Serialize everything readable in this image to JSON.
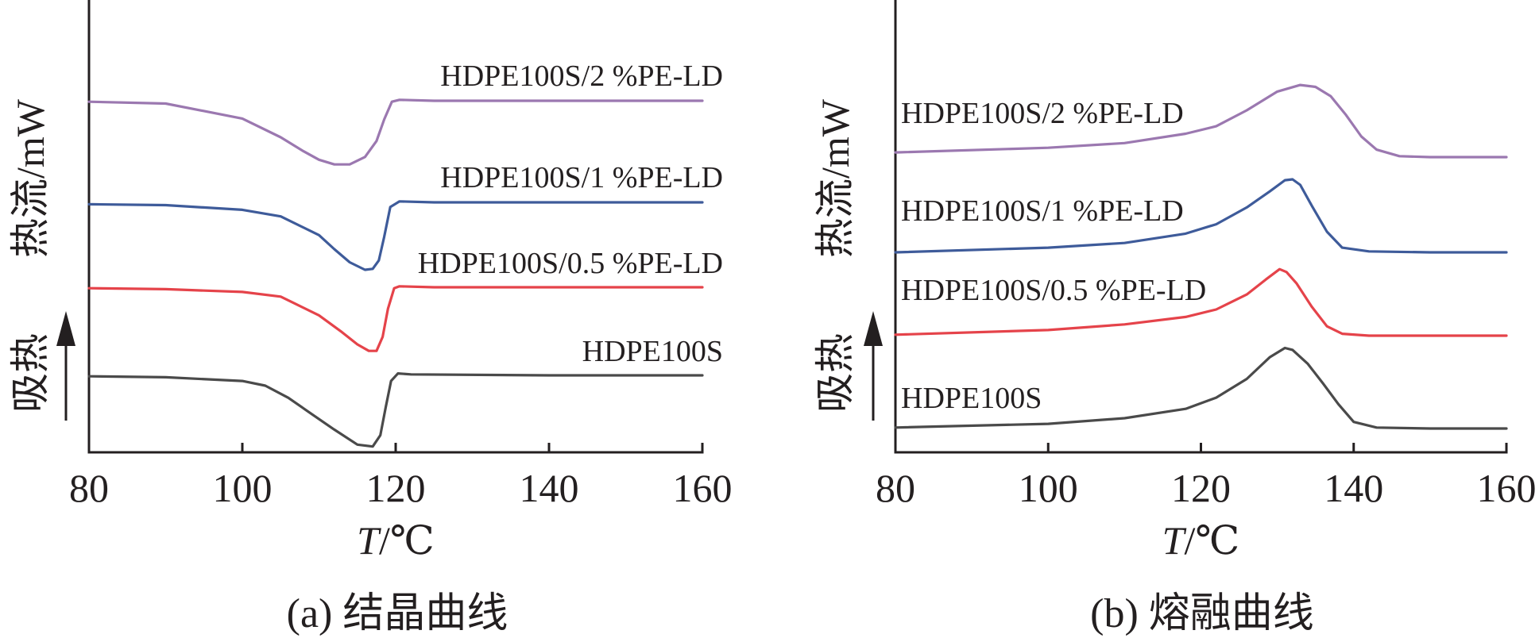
{
  "chart_data": [
    {
      "type": "line",
      "caption": "(a) 结晶曲线",
      "xlabel_var": "T",
      "xlabel_unit": "/℃",
      "ylabel": "热流/mW",
      "endotherm_label": "吸热",
      "xlim": [
        80,
        160
      ],
      "xticks": [
        80,
        100,
        120,
        140,
        160
      ],
      "yticks_shown": false,
      "grid": false,
      "legend": "inline labels above curves",
      "series": [
        {
          "name": "HDPE100S/2 %PE-LD",
          "color": "#9b78b0",
          "x": [
            80,
            90,
            100,
            105,
            108,
            110,
            112,
            114,
            116,
            117.5,
            118.5,
            119.5,
            120.5,
            125,
            140,
            160
          ],
          "y": [
            4.14,
            4.12,
            3.96,
            3.76,
            3.61,
            3.52,
            3.47,
            3.47,
            3.55,
            3.72,
            3.95,
            4.14,
            4.16,
            4.15,
            4.15,
            4.15
          ]
        },
        {
          "name": "HDPE100S/1 %PE-LD",
          "color": "#3e5b9a",
          "x": [
            80,
            90,
            100,
            105,
            110,
            112,
            114,
            116,
            117,
            117.8,
            118.5,
            119.3,
            120.5,
            125,
            140,
            160
          ],
          "y": [
            2.95,
            2.94,
            2.89,
            2.82,
            2.62,
            2.47,
            2.33,
            2.25,
            2.26,
            2.35,
            2.6,
            2.92,
            2.98,
            2.97,
            2.97,
            2.97
          ]
        },
        {
          "name": "HDPE100S/0.5 %PE-LD",
          "color": "#e5434a",
          "x": [
            80,
            90,
            100,
            105,
            110,
            113,
            115,
            116.5,
            117.5,
            118.3,
            119,
            119.8,
            120.5,
            125,
            140,
            160
          ],
          "y": [
            1.97,
            1.96,
            1.93,
            1.88,
            1.68,
            1.5,
            1.37,
            1.3,
            1.3,
            1.45,
            1.75,
            1.97,
            1.99,
            1.98,
            1.98,
            1.98
          ]
        },
        {
          "name": "HDPE100S",
          "color": "#4a4a4a",
          "x": [
            80,
            90,
            100,
            103,
            106,
            109,
            112,
            115,
            117,
            118,
            118.7,
            119.4,
            120.3,
            122,
            140,
            160
          ],
          "y": [
            0.95,
            0.94,
            0.9,
            0.85,
            0.72,
            0.55,
            0.38,
            0.22,
            0.2,
            0.32,
            0.62,
            0.9,
            0.98,
            0.97,
            0.96,
            0.96
          ]
        }
      ]
    },
    {
      "type": "line",
      "caption": "(b) 熔融曲线",
      "xlabel_var": "T",
      "xlabel_unit": "/℃",
      "ylabel": "热流/mW",
      "endotherm_label": "吸热",
      "xlim": [
        80,
        160
      ],
      "xticks": [
        80,
        100,
        120,
        140,
        160
      ],
      "yticks_shown": false,
      "grid": false,
      "legend": "inline labels above curves",
      "series": [
        {
          "name": "HDPE100S/2 %PE-LD",
          "color": "#9b78b0",
          "x": [
            80,
            100,
            110,
            118,
            122,
            126,
            130,
            133,
            135,
            137,
            139,
            141,
            143,
            146,
            150,
            160
          ],
          "y": [
            3.85,
            3.9,
            3.95,
            4.05,
            4.13,
            4.3,
            4.5,
            4.57,
            4.55,
            4.45,
            4.25,
            4.02,
            3.88,
            3.81,
            3.8,
            3.8
          ]
        },
        {
          "name": "HDPE100S/1 %PE-LD",
          "color": "#3e5b9a",
          "x": [
            80,
            100,
            110,
            118,
            122,
            126,
            129,
            131,
            132,
            133,
            134.5,
            136.5,
            138.5,
            142,
            150,
            160
          ],
          "y": [
            2.7,
            2.75,
            2.8,
            2.9,
            3.0,
            3.18,
            3.35,
            3.47,
            3.48,
            3.42,
            3.2,
            2.92,
            2.75,
            2.71,
            2.7,
            2.7
          ]
        },
        {
          "name": "HDPE100S/0.5 %PE-LD",
          "color": "#e5434a",
          "x": [
            80,
            100,
            110,
            118,
            122,
            126,
            128.5,
            130.3,
            131.2,
            132.5,
            134.5,
            136.5,
            138.5,
            142,
            150,
            160
          ],
          "y": [
            1.75,
            1.8,
            1.86,
            1.94,
            2.02,
            2.18,
            2.34,
            2.45,
            2.42,
            2.3,
            2.05,
            1.84,
            1.76,
            1.74,
            1.74,
            1.74
          ]
        },
        {
          "name": "HDPE100S",
          "color": "#4a4a4a",
          "x": [
            80,
            100,
            110,
            118,
            122,
            126,
            129,
            131,
            132,
            134,
            136,
            138,
            140,
            143,
            150,
            160
          ],
          "y": [
            0.6,
            0.64,
            0.7,
            0.8,
            0.92,
            1.12,
            1.35,
            1.45,
            1.43,
            1.28,
            1.07,
            0.85,
            0.66,
            0.6,
            0.59,
            0.59
          ]
        }
      ]
    }
  ]
}
